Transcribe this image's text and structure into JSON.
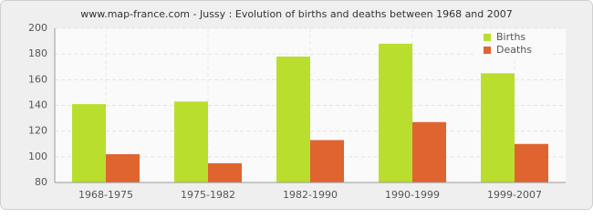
{
  "chart_data": {
    "type": "bar",
    "title": "www.map-france.com - Jussy : Evolution of births and deaths between 1968 and 2007",
    "categories": [
      "1968-1975",
      "1975-1982",
      "1982-1990",
      "1990-1999",
      "1999-2007"
    ],
    "series": [
      {
        "name": "Births",
        "color": "#bade2e",
        "values": [
          141,
          143,
          178,
          188,
          165
        ]
      },
      {
        "name": "Deaths",
        "color": "#e0642f",
        "values": [
          102,
          95,
          113,
          127,
          110
        ]
      }
    ],
    "ylim": [
      80,
      200
    ],
    "yticks": [
      80,
      100,
      120,
      140,
      160,
      180,
      200
    ],
    "grid": true,
    "legend": "top-right"
  }
}
